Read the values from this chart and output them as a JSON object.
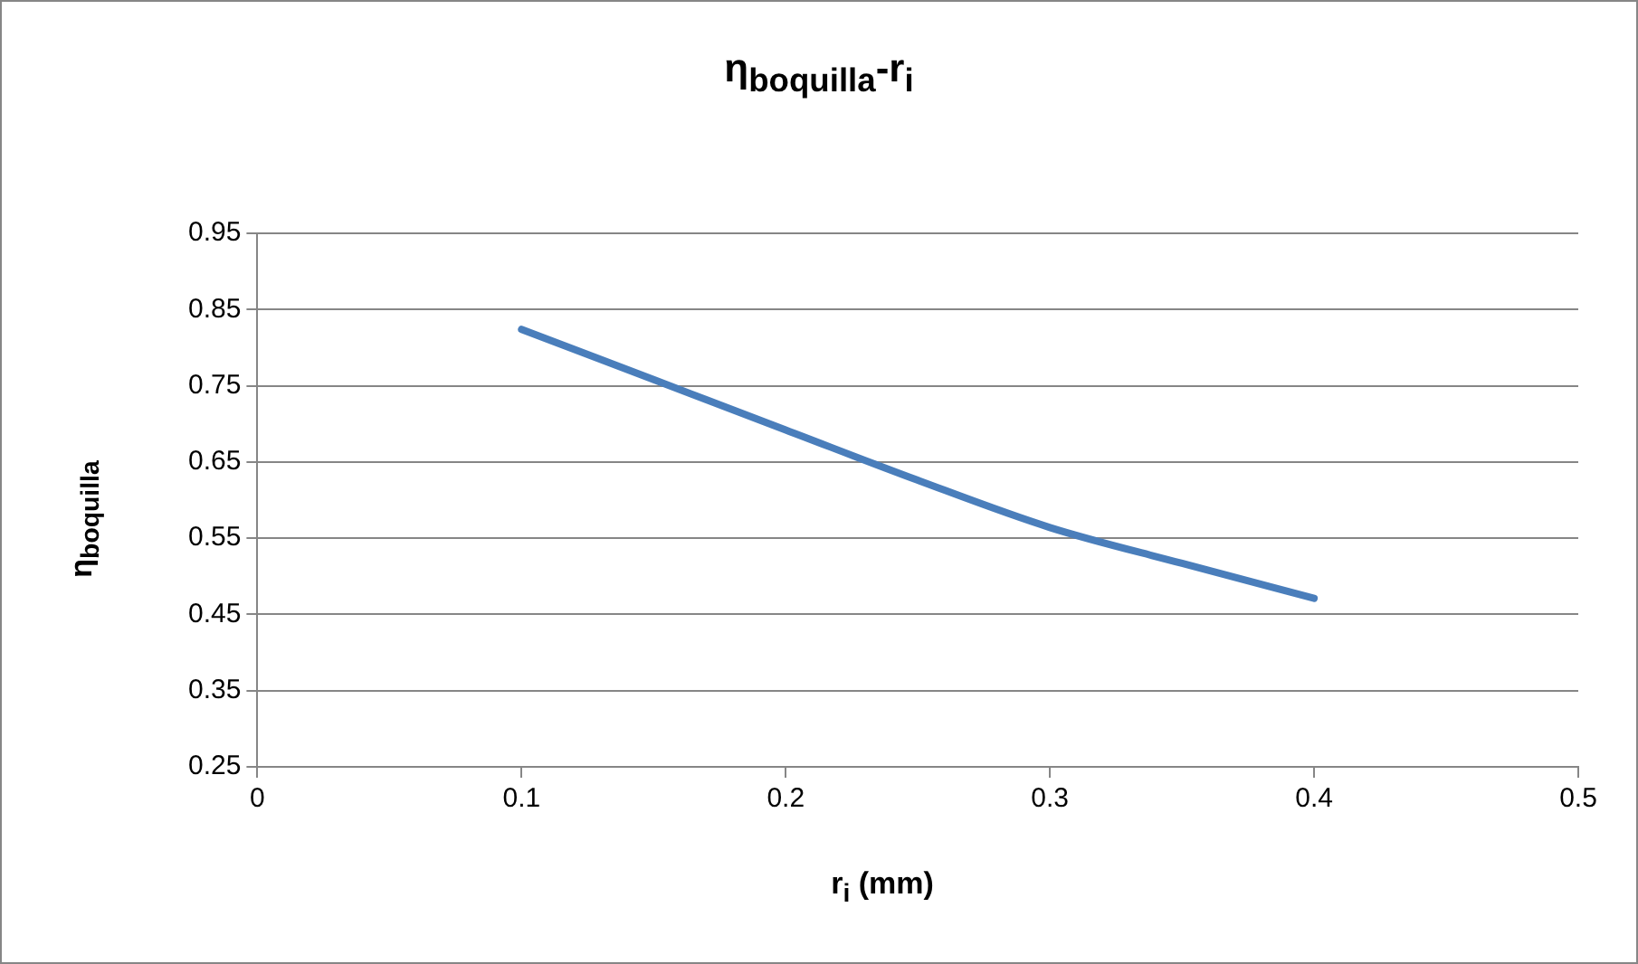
{
  "chart_data": {
    "type": "line",
    "title": "η$_{boquilla}$-r$_{i}$",
    "xlabel": "r$_{i}$ (mm)",
    "ylabel": "η$_{boquilla}$",
    "x": [
      0.1,
      0.15,
      0.2,
      0.25,
      0.3,
      0.35,
      0.4
    ],
    "series": [
      {
        "color": "#4a7ebb",
        "values": [
          0.824,
          0.758,
          0.692,
          0.626,
          0.564,
          0.517,
          0.471
        ]
      }
    ],
    "xlim": [
      0,
      0.5
    ],
    "xticks": [
      0,
      0.1,
      0.2,
      0.3,
      0.4,
      0.5
    ],
    "ylim": [
      0.25,
      0.95
    ],
    "yticks": [
      0.25,
      0.35,
      0.45,
      0.55,
      0.65,
      0.75,
      0.85,
      0.95
    ],
    "grid": "y",
    "legend": false,
    "marker": "none",
    "line_style": "solid"
  }
}
